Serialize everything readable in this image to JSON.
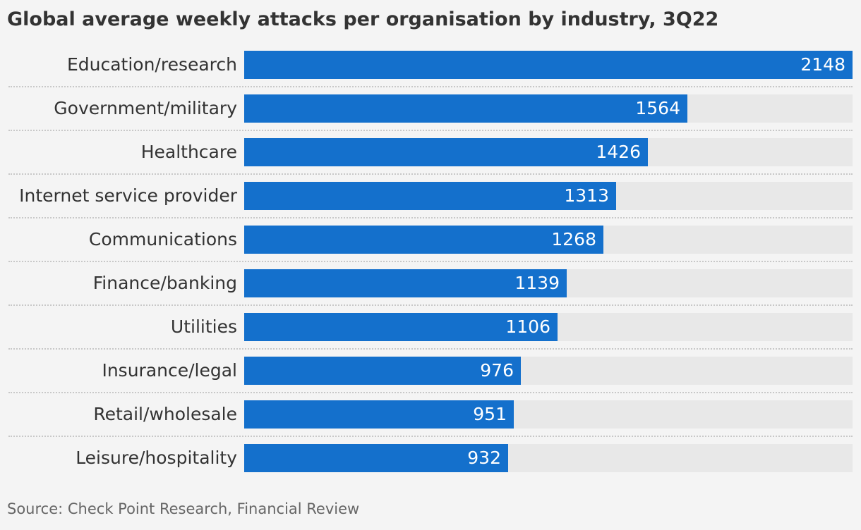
{
  "chart_data": {
    "type": "bar",
    "orientation": "horizontal",
    "title": "Global average weekly attacks per organisation by industry, 3Q22",
    "categories": [
      "Education/research",
      "Government/military",
      "Healthcare",
      "Internet service provider",
      "Communications",
      "Finance/banking",
      "Utilities",
      "Insurance/legal",
      "Retail/wholesale",
      "Leisure/hospitality"
    ],
    "values": [
      2148,
      1564,
      1426,
      1313,
      1268,
      1139,
      1106,
      976,
      951,
      932
    ],
    "xlim": [
      0,
      2148
    ],
    "grid": false,
    "legend": "none",
    "source": "Source: Check Point Research, Financial Review"
  },
  "colors": {
    "bar": "#1470cc",
    "track": "#e8e8e8",
    "background": "#f4f4f4",
    "text": "#333333",
    "value_text": "#ffffff"
  }
}
